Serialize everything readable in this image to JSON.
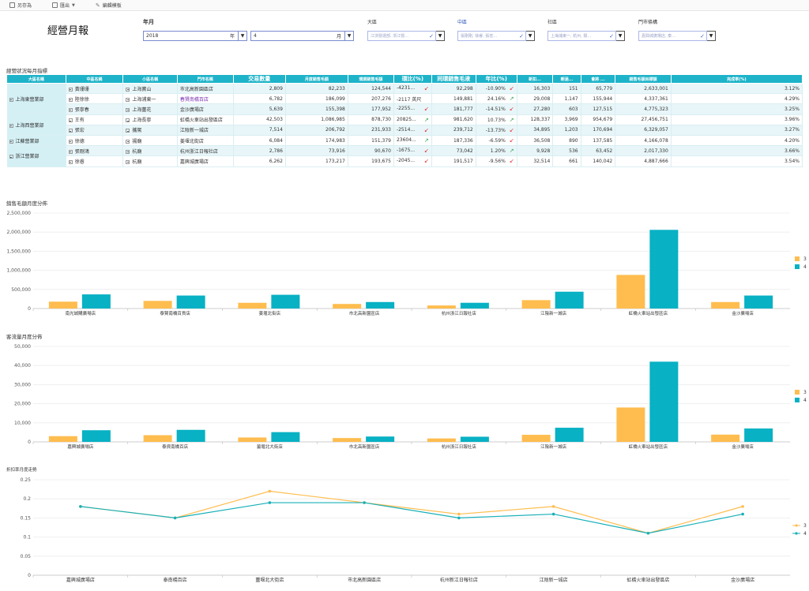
{
  "toolbar": {
    "save_as": "另存為",
    "export": "匯出",
    "edit_template": "編輯模板"
  },
  "report_title": "經營月報",
  "filters": {
    "year_month_label": "年月",
    "year_value": "2018",
    "year_unit": "年",
    "month_value": "4",
    "month_unit": "月",
    "area_label": "大區",
    "area_value": "江浙營運部, 浙江營...",
    "mid_label": "中區",
    "mid_value": "張剛剛, 徐睿, 張宏...",
    "district_label": "社區",
    "district_value": "上海浦東一, 杭州, 揚...",
    "store_label": "門市條構",
    "store_value": "嘉興城廣場店, 泰...",
    "caret": "▼",
    "check": "✓"
  },
  "table_section_title": "經營狀況每月指標",
  "table": {
    "headers": [
      "大區名稱",
      "中區名稱",
      "小區名稱",
      "門市名稱",
      "交易數量",
      "月度銷售毛額",
      "環期銷售毛額",
      "環比(%)",
      "同環銷售毛液",
      "年比(%)",
      "新扣...",
      "朝涵...",
      "會將 ...",
      "銷售毛額目標額",
      "完成率(%)"
    ],
    "regions": [
      {
        "name": "上海東營業部",
        "rows": 3
      },
      {
        "name": "上海西營業部",
        "rows": 2
      },
      {
        "name": "江蘇營業部",
        "rows": 1
      },
      {
        "name": "浙江營業部",
        "rows": 2
      }
    ],
    "rows": [
      {
        "mid": "黃珊珊",
        "small": "上海寶山",
        "store": "市北高新園區店",
        "trans": "2,809",
        "sales": "82,233",
        "prev": "124,544",
        "mom": "-4231...",
        "mom_dir": "down",
        "yoy_sales": "92,298",
        "yoy": "-10.90%",
        "yoy_dir": "down",
        "c1": "16,303",
        "c2": "151",
        "c3": "65,779",
        "target": "2,633,001",
        "rate": "3.12%"
      },
      {
        "mid": "陸徐徐",
        "small": "上海浦東一",
        "store": "春賢南橋百店",
        "trans": "6,782",
        "sales": "186,099",
        "prev": "207,276",
        "mom": "-2117 英尺",
        "mom_dir": "",
        "yoy_sales": "149,881",
        "yoy": "24.16%",
        "yoy_dir": "up",
        "c1": "29,008",
        "c2": "1,147",
        "c3": "155,944",
        "target": "4,337,361",
        "rate": "4.29%"
      },
      {
        "mid": "張寧春",
        "small": "上海薑花",
        "store": "金沙廣場店",
        "trans": "5,639",
        "sales": "155,398",
        "prev": "177,952",
        "mom": "-2255...",
        "mom_dir": "down",
        "yoy_sales": "181,777",
        "yoy": "-14.51%",
        "yoy_dir": "down",
        "c1": "27,280",
        "c2": "603",
        "c3": "127,515",
        "target": "4,775,323",
        "rate": "3.25%"
      },
      {
        "mid": "王有",
        "small": "上海長寧",
        "store": "虹橋火車站出發區店",
        "trans": "42,503",
        "sales": "1,086,985",
        "prev": "878,730",
        "mom": "20825...",
        "mom_dir": "up",
        "yoy_sales": "981,620",
        "yoy": "10.73%",
        "yoy_dir": "up",
        "c1": "128,337",
        "c2": "3,969",
        "c3": "954,679",
        "target": "27,456,751",
        "rate": "3.96%"
      },
      {
        "mid": "張宏",
        "small": "攜駕",
        "store": "江陰新一城店",
        "trans": "7,514",
        "sales": "206,792",
        "prev": "231,933",
        "mom": "-2514...",
        "mom_dir": "down",
        "yoy_sales": "239,712",
        "yoy": "-13.73%",
        "yoy_dir": "down",
        "c1": "34,895",
        "c2": "1,203",
        "c3": "170,694",
        "target": "6,329,057",
        "rate": "3.27%"
      },
      {
        "mid": "徐德",
        "small": "揚廟",
        "store": "姜堰北街店",
        "trans": "6,084",
        "sales": "174,983",
        "prev": "151,379",
        "mom": "23604...",
        "mom_dir": "up",
        "yoy_sales": "187,336",
        "yoy": "-6.59%",
        "yoy_dir": "down",
        "c1": "36,508",
        "c2": "890",
        "c3": "137,585",
        "target": "4,166,078",
        "rate": "4.20%"
      },
      {
        "mid": "張剛鴻",
        "small": "杭廟",
        "store": "杭州浙江日報社店",
        "trans": "2,786",
        "sales": "73,916",
        "prev": "90,670",
        "mom": "-1675...",
        "mom_dir": "down",
        "yoy_sales": "73,042",
        "yoy": "1.20%",
        "yoy_dir": "up",
        "c1": "9,928",
        "c2": "536",
        "c3": "63,452",
        "target": "2,017,330",
        "rate": "3.66%"
      },
      {
        "mid": "徐睿",
        "small": "杭廟",
        "store": "嘉興城廣場店",
        "trans": "6,262",
        "sales": "173,217",
        "prev": "193,675",
        "mom": "-2045...",
        "mom_dir": "down",
        "yoy_sales": "191,517",
        "yoy": "-9.56%",
        "yoy_dir": "down",
        "c1": "32,514",
        "c2": "661",
        "c3": "140,042",
        "target": "4,887,666",
        "rate": "3.54%"
      }
    ]
  },
  "colors": {
    "series3": "#ffbd4f",
    "series4": "#08b1c4",
    "header_teal": "#1eb3c9",
    "line3": "#ffbd4f",
    "line4": "#18b0b8"
  },
  "chart_data": [
    {
      "type": "bar",
      "title": "銷售毛額月度分佈",
      "categories": [
        "南光城購廣場店",
        "泰賢南橋百貨店",
        "姜堰北街店",
        "市北高新園區店",
        "杭州浙江日報社店",
        "江陰新一城店",
        "虹橋火車站出發區店",
        "金沙廣場店"
      ],
      "series": [
        {
          "name": "3",
          "values": [
            180000,
            200000,
            150000,
            120000,
            80000,
            220000,
            880000,
            170000
          ]
        },
        {
          "name": "4",
          "values": [
            370000,
            340000,
            360000,
            170000,
            150000,
            440000,
            2060000,
            340000
          ]
        }
      ],
      "yticks": [
        "0",
        "500,000",
        "1,000,000",
        "1,500,000",
        "2,000,000",
        "2,500,000"
      ],
      "ylim": [
        0,
        2500000
      ],
      "legend": "right"
    },
    {
      "type": "bar",
      "title": "客流量月度分佈",
      "categories": [
        "嘉興城廣場店",
        "泰資南橋百店",
        "薑堰北大街店",
        "市北高新園區店",
        "杭州浙江日報社店",
        "江陰新一城店",
        "虹橋火車站出發區店",
        "金沙廣場店"
      ],
      "series": [
        {
          "name": "3",
          "values": [
            3000,
            3500,
            2300,
            2000,
            1800,
            3700,
            18000,
            3800
          ]
        },
        {
          "name": "4",
          "values": [
            6100,
            6300,
            5100,
            2800,
            2700,
            7400,
            42000,
            7000
          ]
        }
      ],
      "yticks": [
        "0",
        "10,000",
        "20,000",
        "30,000",
        "40,000",
        "50,000"
      ],
      "ylim": [
        0,
        50000
      ],
      "legend": "right"
    },
    {
      "type": "line",
      "title": "折扣率月度走勢",
      "categories": [
        "嘉興城廣場店",
        "泰南橋百店",
        "薑堰北大街店",
        "市北高新園區店",
        "杭州新江日報社店",
        "江陰新一城店",
        "虹橋火車站出發區店",
        "金沙廣場店"
      ],
      "series": [
        {
          "name": "3",
          "values": [
            0.18,
            0.15,
            0.22,
            0.19,
            0.16,
            0.18,
            0.11,
            0.18
          ]
        },
        {
          "name": "4",
          "values": [
            0.18,
            0.15,
            0.19,
            0.19,
            0.15,
            0.16,
            0.11,
            0.16
          ]
        }
      ],
      "yticks": [
        "0",
        "0.05",
        "0.1",
        "0.15",
        "0.2",
        "0.25"
      ],
      "ylim": [
        0,
        0.25
      ],
      "legend": "right"
    }
  ]
}
